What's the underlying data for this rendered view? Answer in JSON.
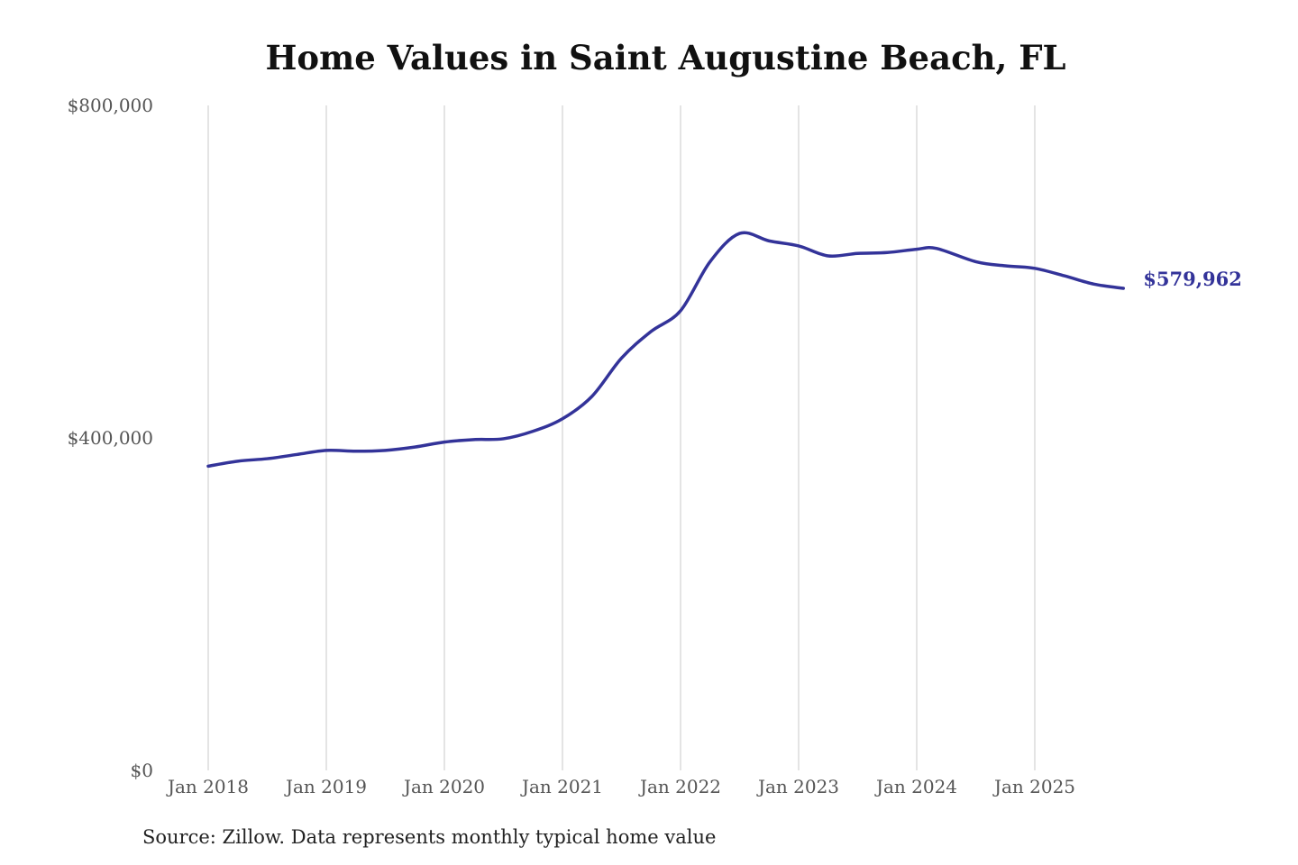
{
  "chart_data": {
    "type": "line",
    "title": "Home Values in Saint Augustine Beach, FL",
    "source": "Source: Zillow. Data represents monthly typical home value",
    "xlabel": "",
    "ylabel": "",
    "ylim": [
      0,
      800000
    ],
    "y_ticks": [
      0,
      400000,
      800000
    ],
    "y_tick_labels": [
      "$0",
      "$400,000",
      "$800,000"
    ],
    "x_ticks": [
      "2018-01",
      "2019-01",
      "2020-01",
      "2021-01",
      "2022-01",
      "2023-01",
      "2024-01",
      "2025-01"
    ],
    "x_tick_labels": [
      "Jan 2018",
      "Jan 2019",
      "Jan 2020",
      "Jan 2021",
      "Jan 2022",
      "Jan 2023",
      "Jan 2024",
      "Jan 2025"
    ],
    "grid": "vertical",
    "line_color": "#333399",
    "end_label": "$579,962",
    "series": [
      {
        "x": [
          "2018-01",
          "2018-04",
          "2018-07",
          "2018-10",
          "2019-01",
          "2019-04",
          "2019-07",
          "2019-10",
          "2020-01",
          "2020-04",
          "2020-07",
          "2020-10",
          "2021-01",
          "2021-04",
          "2021-07",
          "2021-10",
          "2022-01",
          "2022-04",
          "2022-07",
          "2022-10",
          "2023-01",
          "2023-04",
          "2023-07",
          "2023-10",
          "2024-01",
          "2024-03",
          "2024-07",
          "2024-10",
          "2025-01",
          "2025-04",
          "2025-07",
          "2025-10"
        ],
        "values": [
          366000,
          372000,
          375000,
          380000,
          385000,
          384000,
          385000,
          389000,
          395000,
          398000,
          399000,
          408000,
          423000,
          450000,
          496000,
          528000,
          553000,
          612000,
          646000,
          637000,
          631000,
          619000,
          622000,
          623000,
          627000,
          628000,
          612000,
          607000,
          604000,
          595000,
          585000,
          579962
        ]
      }
    ]
  }
}
